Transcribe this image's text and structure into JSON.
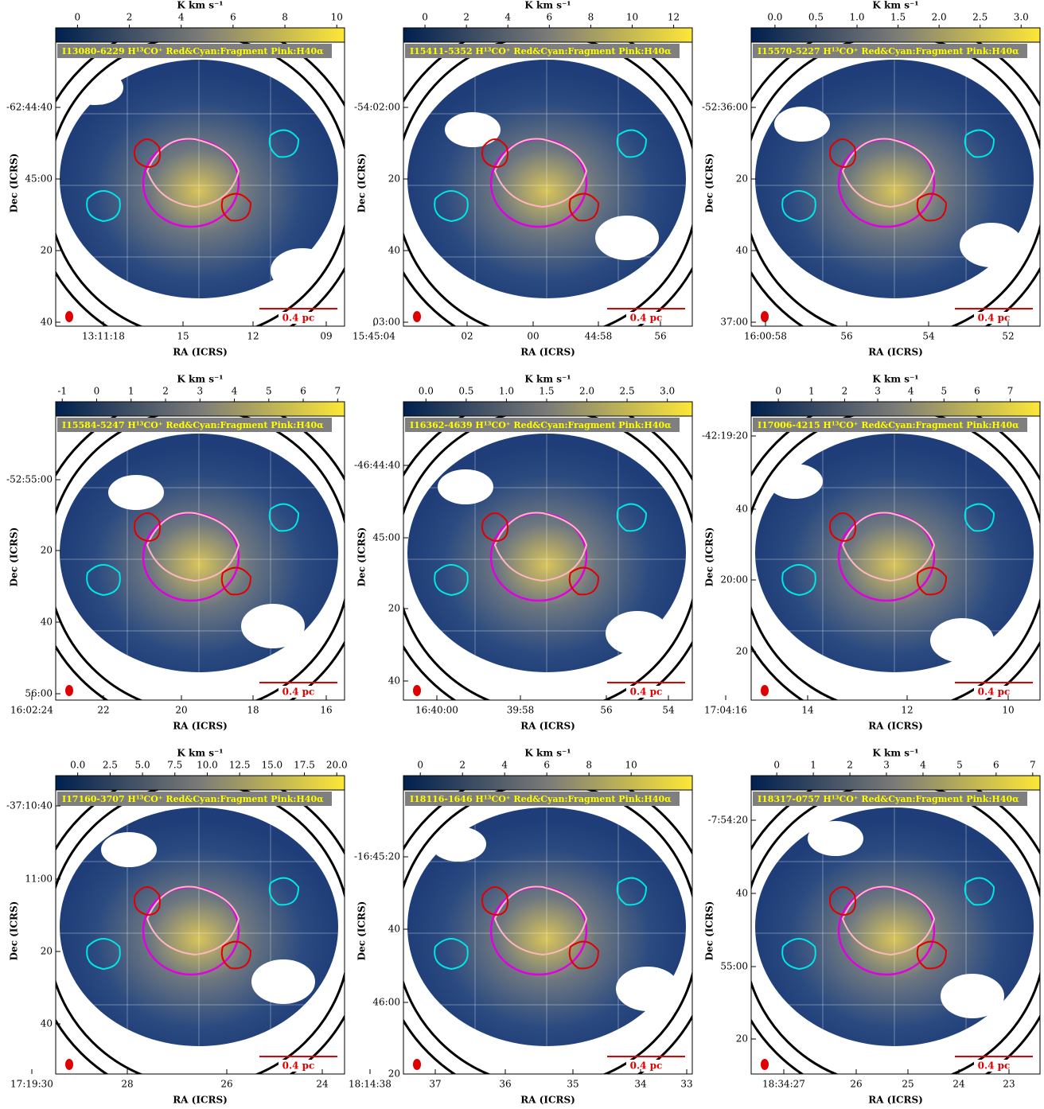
{
  "panels": [
    {
      "title": "I13080-6229 H¹³CO⁺ Red&Cyan:Fragment Pink:H40α",
      "colorbar": {
        "label": "K km s⁻¹",
        "lim": [
          -0.84,
          10.3
        ],
        "ticks": [
          0,
          2,
          4,
          6,
          8,
          10
        ]
      },
      "dec_ticks": [
        "-62:44:40",
        "45:00",
        "20",
        "40"
      ],
      "ra_ticks": [
        "13:11:18",
        "15",
        "12",
        "09"
      ],
      "x_label": "RA (ICRS)",
      "y_label": "Dec (ICRS)",
      "scale_label": "0.4 pc"
    },
    {
      "title": "I15411-5352 H¹³CO⁺ Red&Cyan:Fragment Pink:H40α",
      "colorbar": {
        "label": "K km s⁻¹",
        "lim": [
          -1.04,
          12.9
        ],
        "ticks": [
          0,
          2,
          4,
          6,
          8,
          10,
          12
        ]
      },
      "dec_ticks": [
        "-54:02:00",
        "20",
        "40",
        "03:00"
      ],
      "ra_ticks": [
        "15:45:04",
        "02",
        "00",
        "44:58",
        "56"
      ],
      "x_label": "RA (ICRS)",
      "y_label": "Dec (ICRS)",
      "scale_label": "0.4 pc"
    },
    {
      "title": "I15570-5227 H¹³CO⁺ Red&Cyan:Fragment Pink:H40α",
      "colorbar": {
        "label": "K km s⁻¹",
        "lim": [
          -0.29,
          3.23
        ],
        "ticks": [
          {
            "value": 0,
            "label": "0.0"
          },
          {
            "value": 0.5,
            "label": "0.5"
          },
          {
            "value": 1,
            "label": "1.0"
          },
          {
            "value": 1.5,
            "label": "1.5"
          },
          {
            "value": 2,
            "label": "2.0"
          },
          {
            "value": 2.5,
            "label": "2.5"
          },
          {
            "value": 3,
            "label": "3.0"
          }
        ]
      },
      "dec_ticks": [
        "-52:36:00",
        "20",
        "40",
        "37:00"
      ],
      "ra_ticks": [
        "16:00:58",
        "56",
        "54",
        "52"
      ],
      "x_label": "RA (ICRS)",
      "y_label": "Dec (ICRS)",
      "scale_label": "0.4 pc"
    },
    {
      "title": "I15584-5247 H¹³CO⁺ Red&Cyan:Fragment Pink:H40α",
      "colorbar": {
        "label": "K km s⁻¹",
        "lim": [
          -1.19,
          7.2
        ],
        "ticks": [
          -1,
          0,
          1,
          2,
          3,
          4,
          5,
          6,
          7
        ]
      },
      "dec_ticks": [
        "-52:55:00",
        "20",
        "40",
        "56:00"
      ],
      "ra_ticks": [
        "16:02:24",
        "22",
        "20",
        "18",
        "16"
      ],
      "x_label": "RA (ICRS)",
      "y_label": "Dec (ICRS)",
      "scale_label": "0.4 pc"
    },
    {
      "title": "I16362-4639 H¹³CO⁺ Red&Cyan:Fragment Pink:H40α",
      "colorbar": {
        "label": "K km s⁻¹",
        "lim": [
          -0.28,
          3.31
        ],
        "ticks": [
          {
            "value": 0,
            "label": "0.0"
          },
          {
            "value": 0.5,
            "label": "0.5"
          },
          {
            "value": 1,
            "label": "1.0"
          },
          {
            "value": 1.5,
            "label": "1.5"
          },
          {
            "value": 2,
            "label": "2.0"
          },
          {
            "value": 2.5,
            "label": "2.5"
          },
          {
            "value": 3,
            "label": "3.0"
          }
        ]
      },
      "dec_ticks": [
        "-46:44:40",
        "45:00",
        "20",
        "40"
      ],
      "ra_ticks": [
        "16:40:00",
        "39:58",
        "56",
        "54"
      ],
      "x_label": "RA (ICRS)",
      "y_label": "Dec (ICRS)",
      "scale_label": "0.4 pc"
    },
    {
      "title": "I17006-4215 H¹³CO⁺ Red&Cyan:Fragment Pink:H40α",
      "colorbar": {
        "label": "K km s⁻¹",
        "lim": [
          -0.82,
          7.9
        ],
        "ticks": [
          0,
          1,
          2,
          3,
          4,
          5,
          6,
          7
        ]
      },
      "dec_ticks": [
        "-42:19:20",
        "40",
        "20:00",
        "20"
      ],
      "ra_ticks": [
        "17:04:16",
        "14",
        "12",
        "10"
      ],
      "x_label": "RA (ICRS)",
      "y_label": "Dec (ICRS)",
      "scale_label": "0.4 pc"
    },
    {
      "title": "I17160-3707 H¹³CO⁺ Red&Cyan:Fragment Pink:H40α",
      "colorbar": {
        "label": "K km s⁻¹",
        "lim": [
          -1.7,
          20.6
        ],
        "ticks": [
          {
            "value": 0,
            "label": "0.0"
          },
          {
            "value": 2.5,
            "label": "2.5"
          },
          {
            "value": 5,
            "label": "5.0"
          },
          {
            "value": 7.5,
            "label": "7.5"
          },
          {
            "value": 10,
            "label": "10.0"
          },
          {
            "value": 12.5,
            "label": "12.5"
          },
          {
            "value": 15,
            "label": "15.0"
          },
          {
            "value": 17.5,
            "label": "17.5"
          },
          {
            "value": 20,
            "label": "20.0"
          }
        ]
      },
      "dec_ticks": [
        "-37:10:40",
        "11:00",
        "20",
        "40"
      ],
      "ra_ticks": [
        "17:19:30",
        "28",
        "26",
        "24"
      ],
      "x_label": "RA (ICRS)",
      "y_label": "Dec (ICRS)",
      "scale_label": "0.4 pc"
    },
    {
      "title": "I18116-1646 H¹³CO⁺ Red&Cyan:Fragment Pink:H40α",
      "colorbar": {
        "label": "K km s⁻¹",
        "lim": [
          -0.8,
          12.9
        ],
        "ticks": [
          0,
          2,
          4,
          6,
          8,
          10
        ]
      },
      "dec_ticks": [
        "-16:45:20",
        "40",
        "46:00",
        "20"
      ],
      "ra_ticks": [
        "18:14:38",
        "37",
        "36",
        "35",
        "34",
        "33"
      ],
      "x_label": "RA (ICRS)",
      "y_label": "Dec (ICRS)",
      "scale_label": "0.4 pc"
    },
    {
      "title": "I18317-0757 H¹³CO⁺ Red&Cyan:Fragment Pink:H40α",
      "colorbar": {
        "label": "K km s⁻¹",
        "lim": [
          -0.7,
          7.2
        ],
        "ticks": [
          0,
          1,
          2,
          3,
          4,
          5,
          6,
          7
        ]
      },
      "dec_ticks": [
        "-7:54:20",
        "40",
        "55:00",
        "20"
      ],
      "ra_ticks": [
        "18:34:27",
        "26",
        "25",
        "24",
        "23"
      ],
      "x_label": "RA (ICRS)",
      "y_label": "Dec (ICRS)",
      "scale_label": "0.4 pc"
    }
  ]
}
